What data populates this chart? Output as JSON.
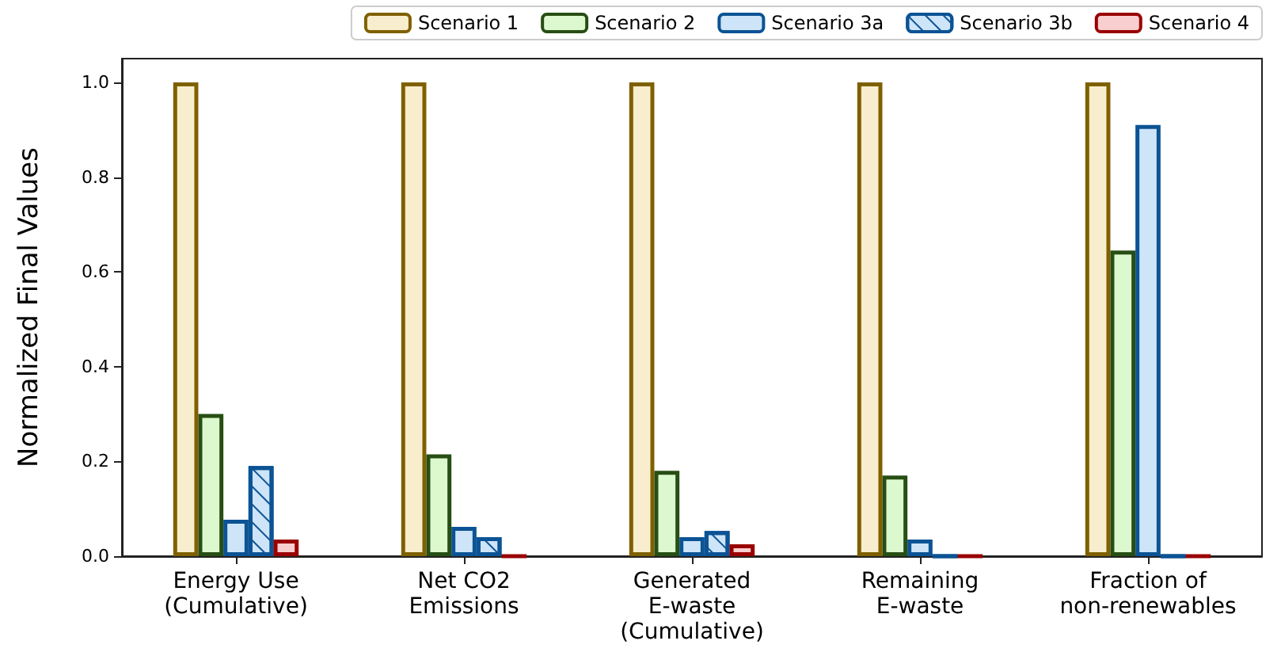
{
  "chart_data": {
    "type": "bar",
    "ylabel": "Normalized Final Values",
    "categories": [
      "Energy Use\n(Cumulative)",
      "Net CO2\nEmissions",
      "Generated\nE-waste\n(Cumulative)",
      "Remaining\nE-waste",
      "Fraction of\nnon-renewables"
    ],
    "series": [
      {
        "name": "Scenario 1",
        "color": "#7f6000",
        "values": [
          1.0,
          1.0,
          1.0,
          1.0,
          1.0
        ]
      },
      {
        "name": "Scenario 2",
        "color": "#274e13",
        "values": [
          0.3,
          0.215,
          0.18,
          0.17,
          0.645
        ]
      },
      {
        "name": "Scenario 3a",
        "color": "#0b5394",
        "values": [
          0.077,
          0.062,
          0.04,
          0.035,
          0.91
        ]
      },
      {
        "name": "Scenario 3b",
        "color": "#0b5394",
        "values": [
          0.19,
          0.04,
          0.053,
          0,
          0
        ]
      },
      {
        "name": "Scenario 4",
        "color": "#990000",
        "values": [
          0.035,
          0,
          0.025,
          0,
          0
        ]
      }
    ],
    "ylim": [
      0,
      1.05
    ],
    "yticks": [
      {
        "value": 0,
        "label": "0.0"
      },
      {
        "value": 0.2,
        "label": "0.2"
      },
      {
        "value": 0.4,
        "label": "0.4"
      },
      {
        "value": 0.6,
        "label": "0.6"
      },
      {
        "value": 0.8,
        "label": "0.8"
      },
      {
        "value": 1,
        "label": "1.0"
      }
    ],
    "grid": false,
    "legend": "top right"
  }
}
